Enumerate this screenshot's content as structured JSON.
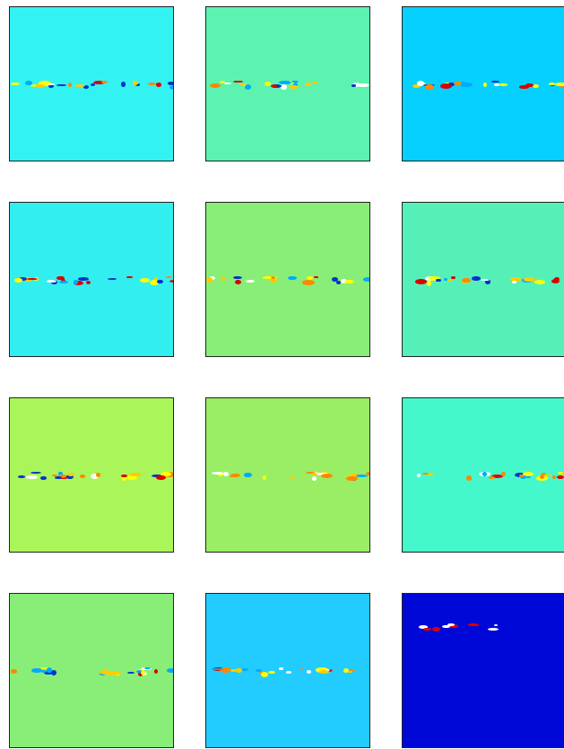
{
  "panels": [
    {
      "color": "#33f2f2"
    },
    {
      "color": "#5cf2b0"
    },
    {
      "color": "#05d0ff"
    },
    {
      "color": "#33eeee"
    },
    {
      "color": "#88ee77"
    },
    {
      "color": "#55f0b8"
    },
    {
      "color": "#aaf55a"
    },
    {
      "color": "#99ee66"
    },
    {
      "color": "#44f8cc"
    },
    {
      "color": "#88ee77"
    },
    {
      "color": "#22ccff"
    },
    {
      "color": "#0008d8"
    }
  ]
}
